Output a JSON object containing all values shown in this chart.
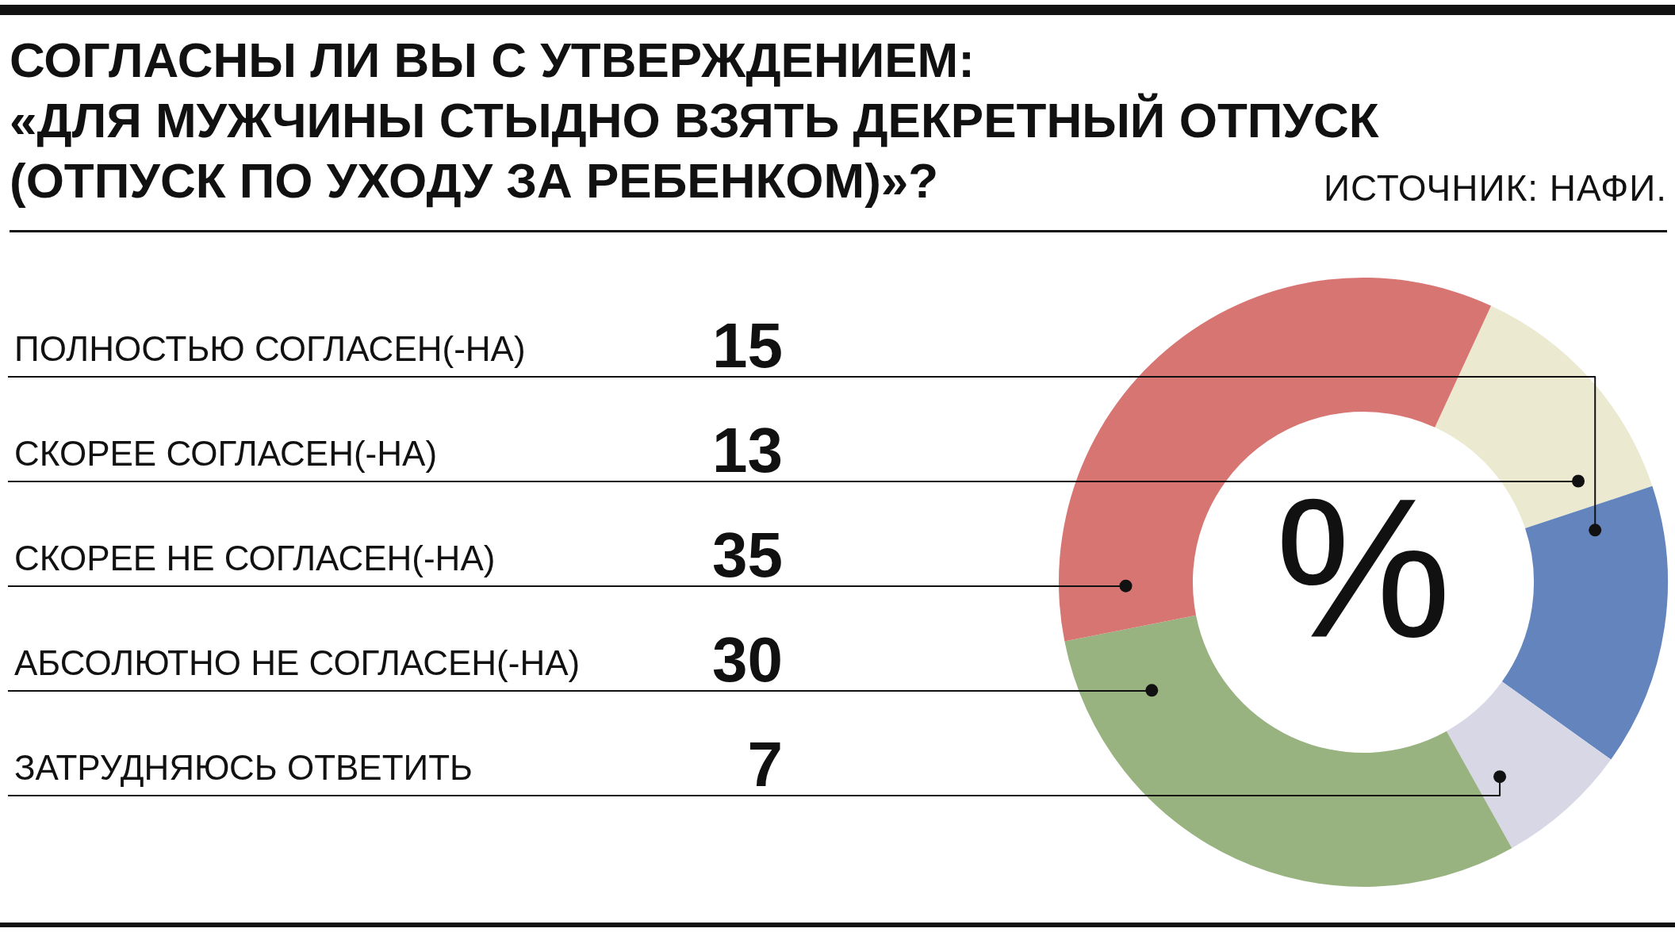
{
  "chart_data": {
    "type": "donut",
    "title": "СОГЛАСНЫ ЛИ ВЫ С УТВЕРЖДЕНИЕМ:\n«ДЛЯ МУЖЧИНЫ СТЫДНО ВЗЯТЬ ДЕКРЕТНЫЙ ОТПУСК\n(ОТПУСК ПО УХОДУ ЗА РЕБЕНКОМ)»?",
    "categories": [
      "ПОЛНОСТЬЮ СОГЛАСЕН(-НА)",
      "СКОРЕЕ СОГЛАСЕН(-НА)",
      "СКОРЕЕ НЕ СОГЛАСЕН(-НА)",
      "АБСОЛЮТНО НЕ СОГЛАСЕН(-НА)",
      "ЗАТРУДНЯЮСЬ ОТВЕТИТЬ"
    ],
    "values": [
      15,
      13,
      35,
      30,
      7
    ],
    "colors": [
      "#6384bd",
      "#ebe9d0",
      "#d77572",
      "#98b280",
      "#d8d7e6"
    ],
    "data_labels": true,
    "annotations": [
      "ИСТОЧНИК: НАФИ.",
      "%"
    ]
  }
}
